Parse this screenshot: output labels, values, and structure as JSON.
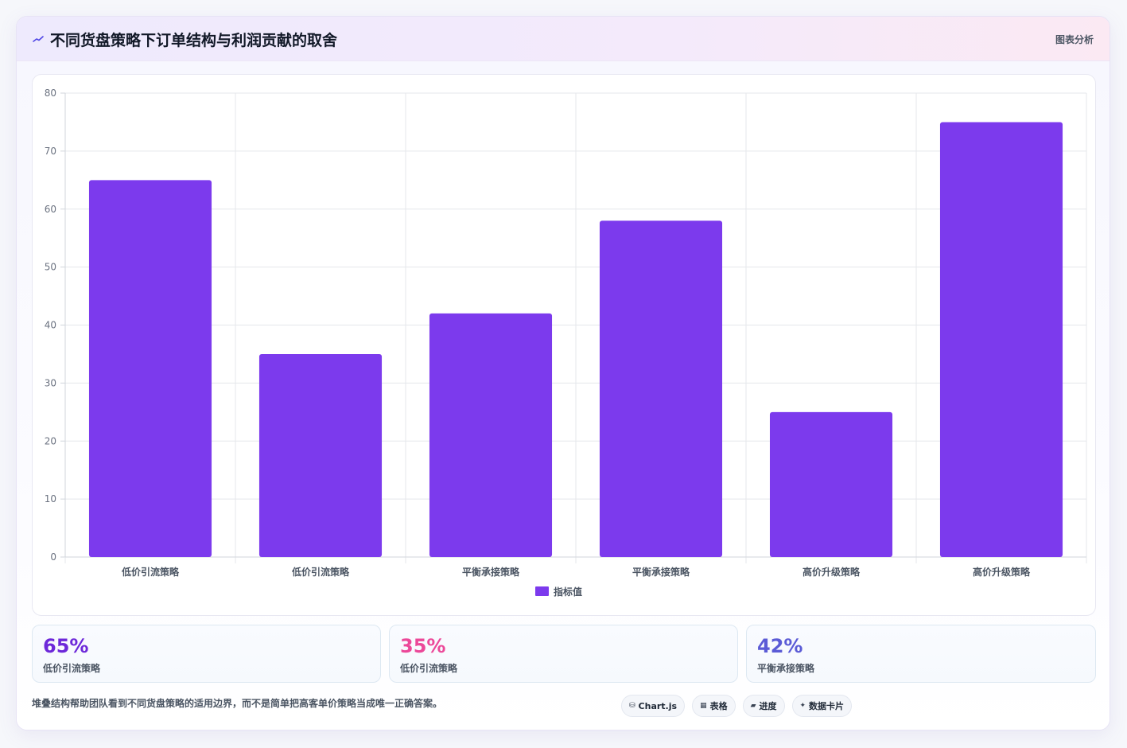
{
  "header": {
    "icon": "sparkline-icon",
    "title": "不同货盘策略下订单结构与利润贡献的取舍",
    "tag": "图表分析"
  },
  "chart_data": {
    "type": "bar",
    "categories": [
      "低价引流策略",
      "低价引流策略",
      "平衡承接策略",
      "平衡承接策略",
      "高价升级策略",
      "高价升级策略"
    ],
    "series": [
      {
        "name": "指标值",
        "values": [
          65,
          35,
          42,
          58,
          25,
          75
        ],
        "color": "#7c3aed"
      }
    ],
    "ylim": [
      0,
      80
    ],
    "yticks": [
      0,
      10,
      20,
      30,
      40,
      50,
      60,
      70,
      80
    ],
    "grid": true,
    "legend": "bottom-center"
  },
  "stats": [
    {
      "value": "65%",
      "label": "低价引流策略",
      "color": "#6d28d9"
    },
    {
      "value": "35%",
      "label": "低价引流策略",
      "color": "#ec4899"
    },
    {
      "value": "42%",
      "label": "平衡承接策略",
      "color": "#5b5bd6"
    }
  ],
  "footer": {
    "note": "堆叠结构帮助团队看到不同货盘策略的适用边界，而不是简单把高客单价策略当成唯一正确答案。",
    "pills": [
      {
        "icon": "database-icon",
        "glyph": "⛁",
        "label": "Chart.js"
      },
      {
        "icon": "table-icon",
        "glyph": "▦",
        "label": "表格"
      },
      {
        "icon": "progress-icon",
        "glyph": "▰",
        "label": "进度"
      },
      {
        "icon": "sparkle-icon",
        "glyph": "✦",
        "label": "数据卡片"
      }
    ]
  }
}
